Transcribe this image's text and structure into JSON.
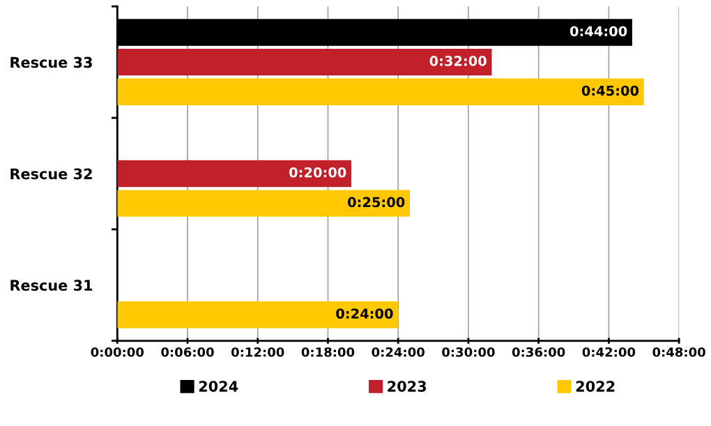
{
  "chart_data": {
    "type": "bar",
    "orientation": "horizontal",
    "categories": [
      "Rescue 33",
      "Rescue 32",
      "Rescue 31"
    ],
    "series": [
      {
        "name": "2024",
        "color": "#000000",
        "values": [
          44,
          null,
          null
        ],
        "value_labels": [
          "0:44:00",
          null,
          null
        ]
      },
      {
        "name": "2023",
        "color": "#c0202a",
        "values": [
          32,
          20,
          null
        ],
        "value_labels": [
          "0:32:00",
          "0:20:00",
          null
        ]
      },
      {
        "name": "2022",
        "color": "#ffc800",
        "values": [
          45,
          25,
          24
        ],
        "value_labels": [
          "0:45:00",
          "0:25:00",
          "0:24:00"
        ]
      }
    ],
    "xlim": [
      0,
      48
    ],
    "xticks": [
      {
        "value": 0,
        "label": "0:00:00"
      },
      {
        "value": 6,
        "label": "0:06:00"
      },
      {
        "value": 12,
        "label": "0:12:00"
      },
      {
        "value": 18,
        "label": "0:18:00"
      },
      {
        "value": 24,
        "label": "0:24:00"
      },
      {
        "value": 30,
        "label": "0:30:00"
      },
      {
        "value": 36,
        "label": "0:36:00"
      },
      {
        "value": 42,
        "label": "0:42:00"
      },
      {
        "value": 48,
        "label": "0:48:00"
      }
    ],
    "grid": "x",
    "legend": "bottom"
  }
}
